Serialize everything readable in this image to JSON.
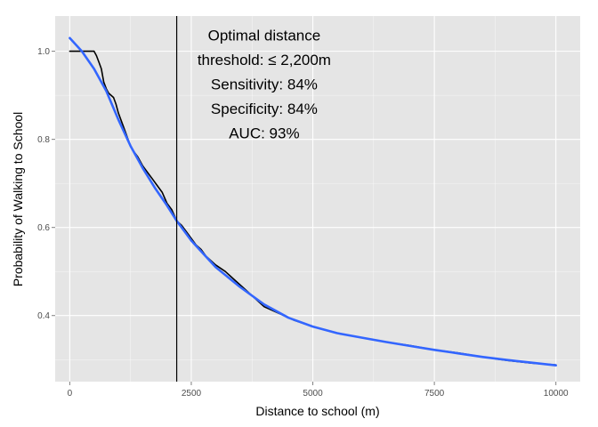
{
  "chart_data": {
    "type": "line",
    "xlabel": "Distance to school (m)",
    "ylabel": "Probability of Walking to School",
    "xlim": [
      -300,
      10500
    ],
    "ylim": [
      0.25,
      1.08
    ],
    "x_ticks": [
      0,
      2500,
      5000,
      7500,
      10000
    ],
    "x_tick_labels": [
      "0",
      "2500",
      "5000",
      "7500",
      "10000"
    ],
    "y_ticks": [
      0.4,
      0.6,
      0.8,
      1.0
    ],
    "y_tick_labels": [
      "0.4",
      "0.6",
      "0.8",
      "1.0"
    ],
    "grid": true,
    "panel_background": "#e5e5e5",
    "grid_color": "#ffffff",
    "vline": {
      "x": 2200,
      "color": "#000000"
    },
    "annotation": {
      "lines": [
        "Optimal distance",
        "threshold: ≤ 2,200m",
        "Sensitivity: 84%",
        "Specificity: 84%",
        "AUC: 93%"
      ]
    },
    "series": [
      {
        "kind": "observed",
        "color": "#000000",
        "x": [
          0,
          200,
          400,
          500,
          550,
          600,
          650,
          700,
          750,
          800,
          850,
          900,
          950,
          1000,
          1100,
          1200,
          1250,
          1300,
          1400,
          1500,
          1600,
          1700,
          1800,
          1900,
          2000,
          2100,
          2200,
          2300,
          2400,
          2500,
          2600,
          2700,
          2800,
          2900,
          3000,
          3200,
          3400,
          3600,
          3800,
          4000,
          4300,
          4600,
          5000,
          5500,
          6000,
          6500,
          7000,
          7500,
          8000,
          8500,
          9000,
          9500,
          10000
        ],
        "y": [
          1.0,
          1.0,
          1.0,
          1.0,
          0.99,
          0.975,
          0.96,
          0.93,
          0.915,
          0.905,
          0.9,
          0.895,
          0.88,
          0.86,
          0.83,
          0.8,
          0.785,
          0.775,
          0.76,
          0.74,
          0.725,
          0.71,
          0.695,
          0.68,
          0.655,
          0.64,
          0.615,
          0.605,
          0.59,
          0.575,
          0.56,
          0.55,
          0.535,
          0.525,
          0.515,
          0.5,
          0.48,
          0.46,
          0.44,
          0.42,
          0.405,
          0.39,
          0.375,
          0.36,
          0.35,
          0.34,
          0.332,
          0.322,
          0.315,
          0.306,
          0.298,
          0.292,
          0.288
        ]
      },
      {
        "kind": "smooth",
        "color": "#3366ff",
        "x": [
          0,
          250,
          500,
          750,
          1000,
          1250,
          1500,
          1750,
          2000,
          2200,
          2500,
          2750,
          3000,
          3500,
          4000,
          4500,
          5000,
          5500,
          6000,
          6500,
          7000,
          7500,
          8000,
          8500,
          9000,
          9500,
          10000
        ],
        "y": [
          1.03,
          1.0,
          0.96,
          0.91,
          0.845,
          0.785,
          0.735,
          0.69,
          0.65,
          0.615,
          0.57,
          0.54,
          0.51,
          0.465,
          0.425,
          0.395,
          0.375,
          0.36,
          0.35,
          0.34,
          0.331,
          0.322,
          0.314,
          0.306,
          0.299,
          0.293,
          0.287
        ]
      }
    ]
  }
}
